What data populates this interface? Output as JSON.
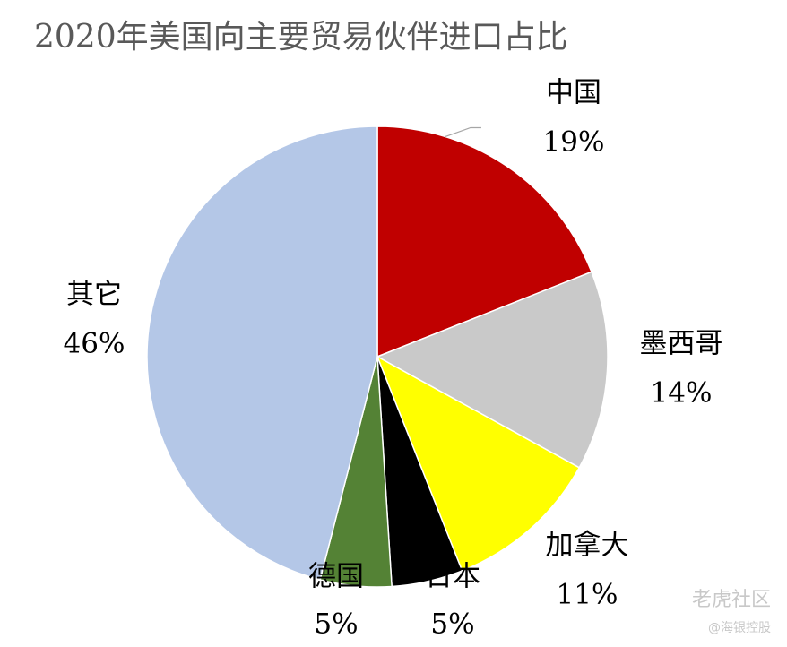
{
  "chart_data": {
    "type": "pie",
    "title": "2020年美国向主要贸易伙伴进口占比",
    "categories": [
      "中国",
      "墨西哥",
      "加拿大",
      "日本",
      "德国",
      "其它"
    ],
    "values": [
      19,
      14,
      11,
      5,
      5,
      46
    ],
    "value_labels": [
      "19%",
      "14%",
      "11%",
      "5%",
      "5%",
      "46%"
    ],
    "colors": [
      "#c00000",
      "#c9c9c9",
      "#ffff00",
      "#000000",
      "#548235",
      "#b4c7e7"
    ],
    "watermark": "老虎社区",
    "watermark_sub": "@海银控股"
  }
}
